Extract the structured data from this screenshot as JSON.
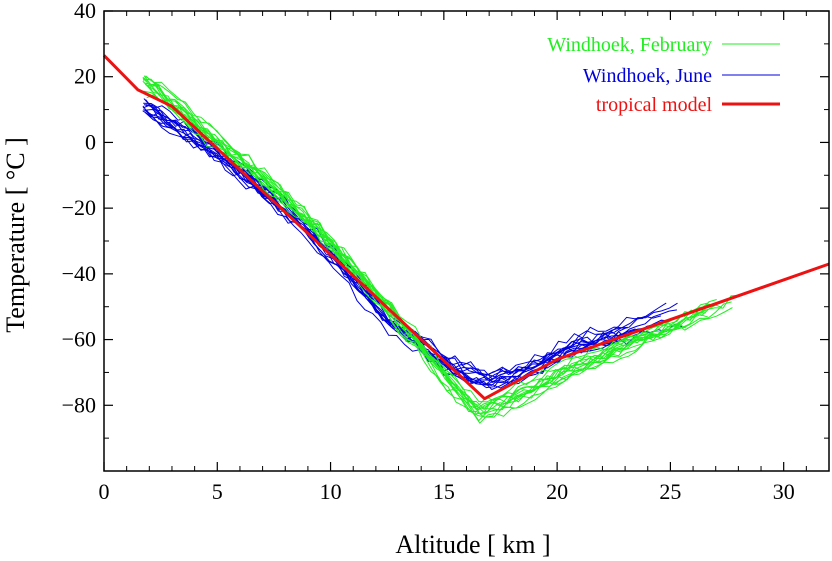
{
  "chart_data": {
    "type": "line",
    "title": "",
    "xlabel": "Altitude  [ km ]",
    "ylabel": "Temperature  [ °C ]",
    "xlim": [
      0,
      32
    ],
    "ylim": [
      -100,
      40
    ],
    "x_ticks": [
      0,
      5,
      10,
      15,
      20,
      25,
      30
    ],
    "x_tick_labels": [
      "0",
      "5",
      "10",
      "15",
      "20",
      "25",
      "30"
    ],
    "y_ticks": [
      -80,
      -60,
      -40,
      -20,
      0,
      20,
      40
    ],
    "y_tick_labels": [
      "−80",
      "−60",
      "−40",
      "−20",
      "0",
      "20",
      "40"
    ],
    "grid": false,
    "legend_position": "top-right",
    "series": [
      {
        "name": "Windhoek, February",
        "color": "#22ee22",
        "style": "bundle of individual soundings",
        "samples": 14,
        "x": [
          1.7,
          2.5,
          3.5,
          5,
          6.5,
          8,
          9.5,
          11,
          12.5,
          14,
          15,
          15.8,
          16.5,
          17.3,
          18,
          19,
          20,
          21.5,
          23,
          24.5,
          26,
          27.5,
          28.5
        ],
        "values": [
          20,
          16,
          10,
          1,
          -7,
          -16,
          -26,
          -37,
          -49,
          -61,
          -70,
          -76,
          -81,
          -79,
          -77,
          -74,
          -70,
          -66,
          -61,
          -57,
          -52,
          -48,
          -46
        ]
      },
      {
        "name": "Windhoek, June",
        "color": "#0000dd",
        "style": "bundle of individual soundings",
        "samples": 14,
        "x": [
          1.7,
          2.5,
          3.5,
          5,
          6.5,
          8,
          9.5,
          11,
          12.5,
          14,
          15,
          16,
          17,
          18,
          19,
          20,
          21.5,
          23,
          24.5,
          26
        ],
        "values": [
          11,
          7,
          3,
          -4,
          -12,
          -21,
          -31,
          -42,
          -54,
          -62,
          -68,
          -71,
          -73,
          -72,
          -69,
          -65,
          -61,
          -58,
          -54,
          -50
        ]
      },
      {
        "name": "tropical model",
        "color": "#ee1111",
        "style": "thick line",
        "x": [
          0,
          1.5,
          3,
          16.8,
          20,
          32
        ],
        "values": [
          26.5,
          16,
          11,
          -78,
          -66,
          -37
        ]
      }
    ]
  }
}
